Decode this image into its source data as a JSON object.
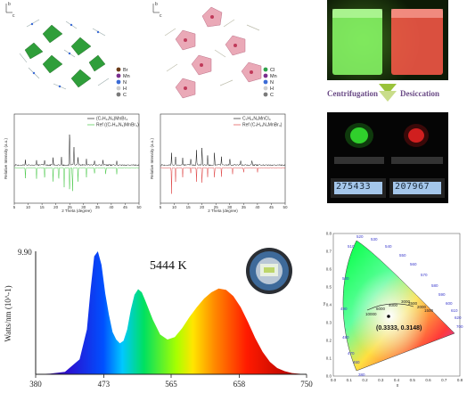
{
  "crystal_a": {
    "axis_b": "b",
    "axis_c": "c",
    "legend": [
      "Br",
      "Mn",
      "N",
      "H",
      "C"
    ],
    "legend_colors": [
      "#6b3b18",
      "#7a2e8e",
      "#3b6bd6",
      "#cfcfcf",
      "#7a7a7a"
    ]
  },
  "crystal_b": {
    "axis_b": "b",
    "axis_c": "c",
    "legend": [
      "Cl",
      "Mn",
      "N",
      "H",
      "C"
    ],
    "legend_colors": [
      "#2ea14a",
      "#7a2e8e",
      "#3b6bd6",
      "#cfcfcf",
      "#7a7a7a"
    ]
  },
  "photos": {
    "step_left": "Centrifugation",
    "step_right": "Desiccation",
    "scale_left": "275433",
    "scale_right": "207967"
  },
  "xrd": {
    "left": {
      "legend_measured": "(C₇H₁₁N₃)MnBr₄",
      "legend_ref": "Ref ((C₇H₁₁N₃)MnBr₄)",
      "xlabel": "2 Theta (degree)",
      "ylabel": "Relative Intensity (a.u.)",
      "ticks": [
        "5",
        "10",
        "15",
        "20",
        "25",
        "30",
        "35",
        "40",
        "45",
        "50"
      ]
    },
    "right": {
      "legend_measured": "C₇H₁₁N₃MnCl₄",
      "legend_ref": "Ref (C₇H₁₁N₃MnBr₄)",
      "xlabel": "2 Theta (degree)",
      "ylabel": "Relative Intensity (a.u.)",
      "ticks": [
        "5",
        "10",
        "15",
        "20",
        "25",
        "30",
        "35",
        "40",
        "45",
        "50"
      ]
    }
  },
  "chart_data": {
    "type": "line",
    "ylabel": "Watts/nm (10^-1)",
    "y_max_label": "9.90",
    "ylim": [
      0,
      9.9
    ],
    "xlim": [
      380,
      750
    ],
    "x_ticks": [
      "380",
      "473",
      "565",
      "658",
      "750"
    ],
    "annotation": "5444 K",
    "x": [
      380,
      400,
      420,
      440,
      450,
      455,
      460,
      465,
      470,
      475,
      480,
      485,
      490,
      495,
      500,
      505,
      510,
      515,
      520,
      525,
      530,
      540,
      550,
      560,
      570,
      580,
      590,
      600,
      610,
      620,
      630,
      640,
      650,
      660,
      670,
      680,
      690,
      700,
      710,
      720,
      730,
      740,
      750
    ],
    "series": [
      {
        "values": [
          0,
          0.05,
          0.2,
          1.2,
          3.6,
          6.8,
          9.5,
          9.9,
          8.8,
          6.5,
          4.8,
          3.4,
          2.8,
          2.5,
          2.7,
          3.6,
          5.2,
          6.4,
          6.85,
          6.6,
          5.9,
          4.4,
          3.2,
          2.8,
          3.0,
          3.7,
          4.6,
          5.4,
          6.1,
          6.6,
          6.9,
          6.8,
          6.3,
          5.4,
          4.2,
          2.9,
          1.8,
          1.0,
          0.5,
          0.25,
          0.1,
          0.04,
          0
        ]
      }
    ]
  },
  "cie": {
    "coord_label": "(0.3333, 0.3148)",
    "x_ticks": [
      "0.0",
      "0.1",
      "0.2",
      "0.3",
      "0.4",
      "0.5",
      "0.6",
      "0.7",
      "0.8"
    ],
    "y_ticks": [
      "0.0",
      "0.1",
      "0.2",
      "0.3",
      "0.4",
      "0.5",
      "0.6",
      "0.7",
      "0.8"
    ],
    "xlabel": "x",
    "ylabel": "y",
    "wavelengths": [
      "520",
      "530",
      "510",
      "540",
      "550",
      "560",
      "570",
      "580",
      "590",
      "600",
      "610",
      "620",
      "700",
      "500",
      "490",
      "480",
      "470",
      "460",
      "380"
    ],
    "cct_labels": [
      "10000",
      "6000",
      "4000",
      "3000",
      "2500",
      "2000",
      "1500"
    ]
  }
}
